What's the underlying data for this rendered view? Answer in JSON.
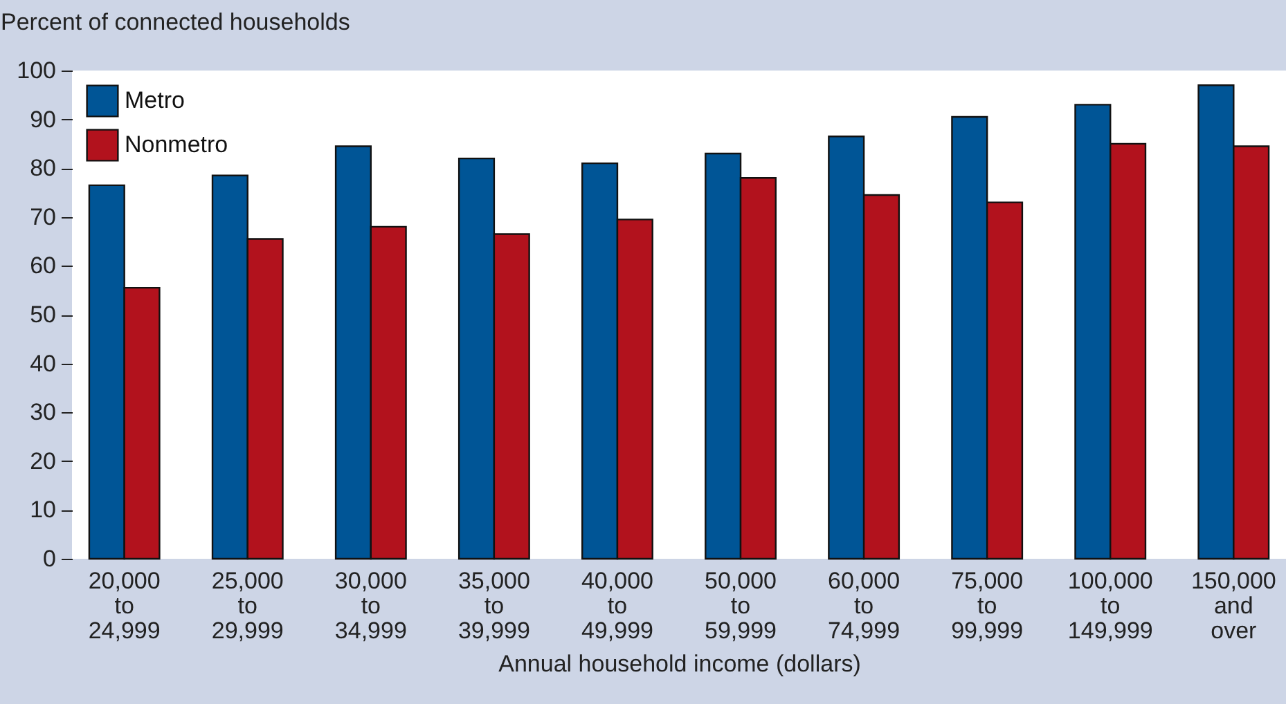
{
  "chart_data": {
    "type": "bar",
    "ylabel": "Percent of connected households",
    "xlabel": "Annual household income (dollars)",
    "categories": [
      "20,000 to 24,999",
      "25,000 to 29,999",
      "30,000 to 34,999",
      "35,000 to 39,999",
      "40,000 to 49,999",
      "50,000 to 59,999",
      "60,000 to 74,999",
      "75,000 to 99,999",
      "100,000 to 149,999",
      "150,000 and over"
    ],
    "series": [
      {
        "name": "Metro",
        "color": "#005596",
        "values": [
          76.5,
          78.5,
          84.5,
          82,
          81,
          83,
          86.5,
          90.5,
          93,
          97
        ]
      },
      {
        "name": "Nonmetro",
        "color": "#b2121d",
        "values": [
          55.5,
          65.5,
          68,
          66.5,
          69.5,
          78,
          74.5,
          73,
          85,
          84.5
        ]
      }
    ],
    "ylim": [
      0,
      100
    ],
    "yticks": [
      0,
      10,
      20,
      30,
      40,
      50,
      60,
      70,
      80,
      90,
      100
    ],
    "legend": "top left"
  }
}
